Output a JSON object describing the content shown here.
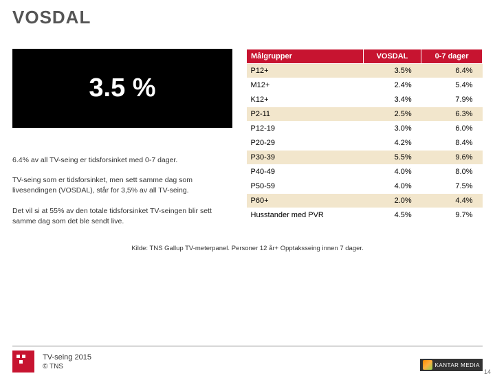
{
  "title": "VOSDAL",
  "big_number": "3.5 %",
  "paragraphs": [
    "6.4% av all TV-seing er tidsforsinket med 0-7 dager.",
    "TV-seing som er tidsforsinket, men sett samme dag som livesendingen (VOSDAL), står for 3,5% av all TV-seing.",
    "Det vil si at 55% av den totale tidsforsinket TV-seingen blir sett samme dag som det ble sendt live."
  ],
  "table": {
    "headers": [
      "Målgrupper",
      "VOSDAL",
      "0-7 dager"
    ],
    "rows": [
      {
        "label": "P12+",
        "v1": "3.5%",
        "v2": "6.4%"
      },
      {
        "label": "M12+",
        "v1": "2.4%",
        "v2": "5.4%"
      },
      {
        "label": "K12+",
        "v1": "3.4%",
        "v2": "7.9%"
      },
      {
        "label": "P2-11",
        "v1": "2.5%",
        "v2": "6.3%"
      },
      {
        "label": "P12-19",
        "v1": "3.0%",
        "v2": "6.0%"
      },
      {
        "label": "P20-29",
        "v1": "4.2%",
        "v2": "8.4%"
      },
      {
        "label": "P30-39",
        "v1": "5.5%",
        "v2": "9.6%"
      },
      {
        "label": "P40-49",
        "v1": "4.0%",
        "v2": "8.0%"
      },
      {
        "label": "P50-59",
        "v1": "4.0%",
        "v2": "7.5%"
      },
      {
        "label": "P60+",
        "v1": "2.0%",
        "v2": "4.4%"
      },
      {
        "label": "Husstander med PVR",
        "v1": "4.5%",
        "v2": "9.7%"
      }
    ]
  },
  "source": "Kilde: TNS Gallup TV-meterpanel. Personer 12 år+ Opptaksseing innen 7 dager.",
  "footer_title": "TV-seing 2015",
  "footer_copyright": "© TNS",
  "kantar": "KANTAR MEDIA",
  "page_number": "14",
  "colors": {
    "accent": "#c71430",
    "band": "#f2e6cc"
  }
}
